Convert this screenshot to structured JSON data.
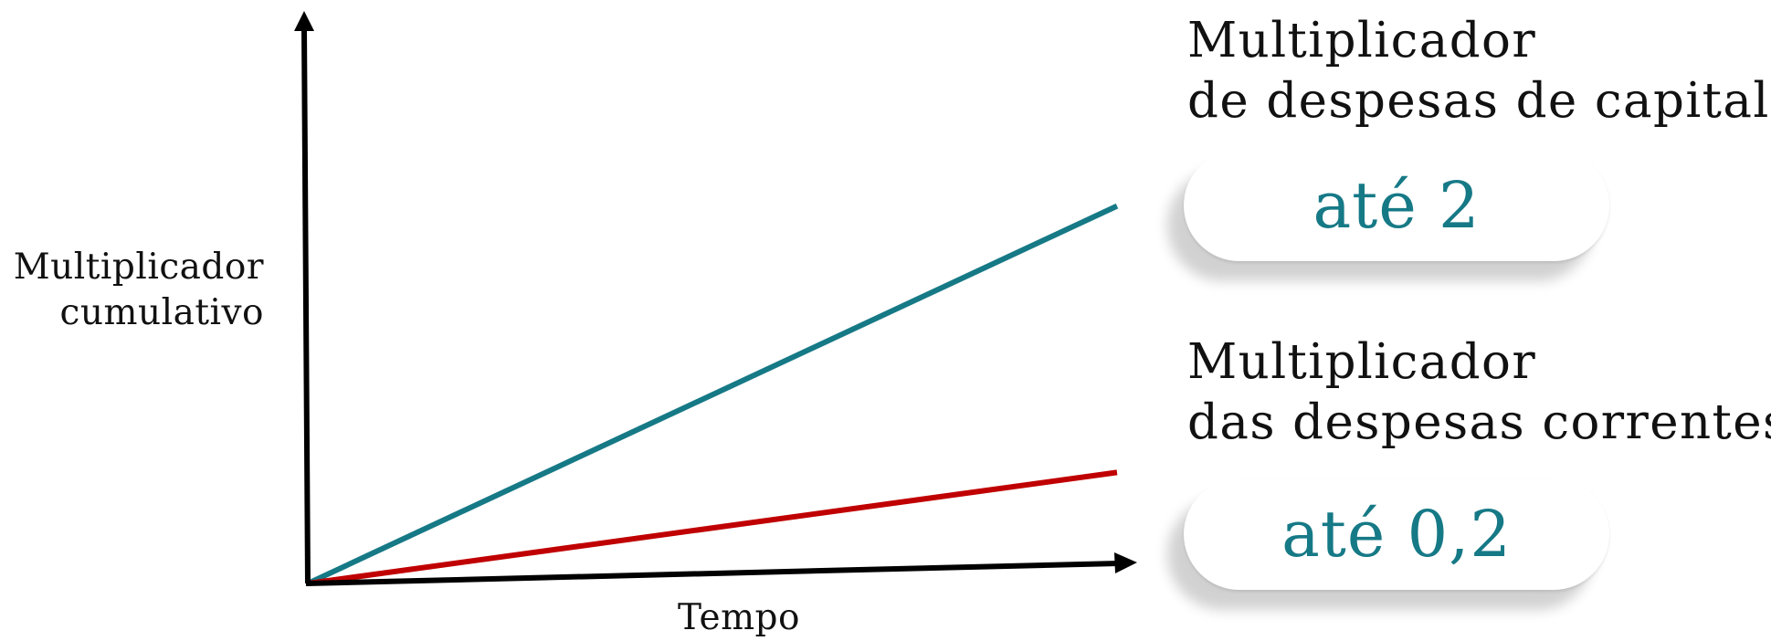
{
  "chart_data": {
    "type": "line",
    "title": "",
    "xlabel": "Tempo",
    "ylabel_lines": [
      "Multiplicador",
      "cumulativo"
    ],
    "xlim": [
      0,
      1
    ],
    "ylim": [
      0,
      1
    ],
    "grid": false,
    "series": [
      {
        "name": "Multiplicador de despesas de capital",
        "color": "#167986",
        "x": [
          0,
          1
        ],
        "y": [
          0,
          0.68
        ]
      },
      {
        "name": "Multiplicador das despesas correntes",
        "color": "#c00000",
        "x": [
          0,
          1
        ],
        "y": [
          0,
          0.2
        ]
      }
    ],
    "annotations": [
      {
        "title_lines": [
          "Multiplicador",
          "de despesas de capital"
        ],
        "value": "até 2"
      },
      {
        "title_lines": [
          "Multiplicador",
          "das despesas correntes"
        ],
        "value": "até 0,2"
      }
    ]
  }
}
